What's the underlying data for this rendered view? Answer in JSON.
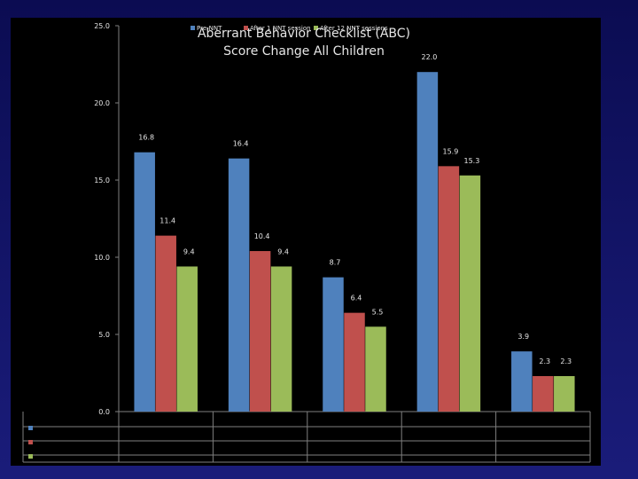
{
  "chart_data": {
    "type": "bar",
    "title_line1": "Aberrant Behavior Checklist (ABC)",
    "title_line2": "Score Change All Children",
    "categories": [
      "",
      "",
      "",
      "",
      ""
    ],
    "series": [
      {
        "name": "Pre-NNT",
        "color": "#4f81bd",
        "values": [
          16.8,
          16.4,
          8.7,
          22.0,
          3.9
        ],
        "labels": [
          "16.8",
          "16.4",
          "8.7",
          "22.0",
          "3.9"
        ]
      },
      {
        "name": "After 1 NNT session",
        "color": "#c0504d",
        "values": [
          11.4,
          10.4,
          6.4,
          15.9,
          2.3
        ],
        "labels": [
          "11.4",
          "10.4",
          "6.4",
          "15.9",
          "2.3"
        ]
      },
      {
        "name": "After 12 NNT sessions",
        "color": "#9bbb59",
        "values": [
          9.4,
          9.4,
          5.5,
          15.3,
          2.3
        ],
        "labels": [
          "9.4",
          "9.4",
          "5.5",
          "15.3",
          "2.3"
        ]
      }
    ],
    "y_ticks": [
      "0.0",
      "5.0",
      "10.0",
      "15.0",
      "20.0",
      "25.0"
    ],
    "ylim": [
      0,
      25
    ],
    "ylabel": "",
    "xlabel": "",
    "legend_position": "top",
    "grid": false
  }
}
